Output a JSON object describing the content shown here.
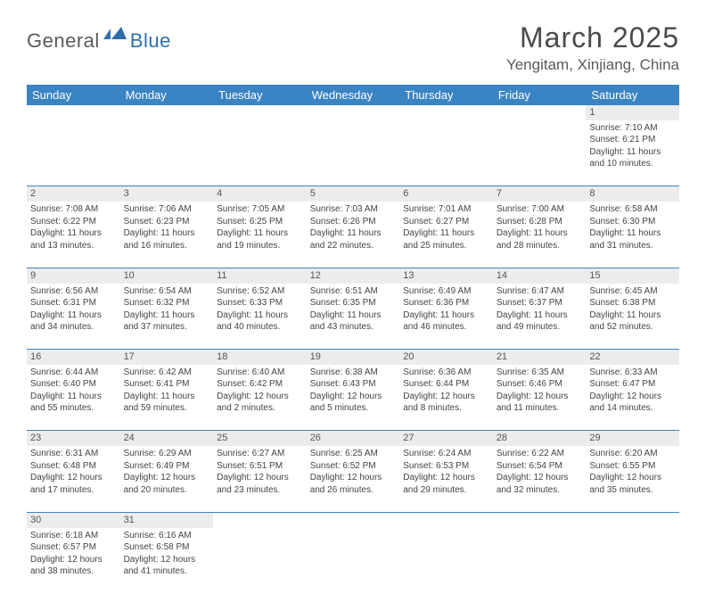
{
  "logo": {
    "part1": "General",
    "part2": "Blue"
  },
  "title": "March 2025",
  "location": "Yengitam, Xinjiang, China",
  "colors": {
    "header_bg": "#3b84c4",
    "header_text": "#ffffff",
    "daynum_bg": "#ececec",
    "row_border": "#3b84c4",
    "body_text": "#444444",
    "logo_gray": "#5a5a5a",
    "logo_blue": "#2f6fa8"
  },
  "typography": {
    "title_fontsize": 32,
    "location_fontsize": 17,
    "th_fontsize": 13,
    "cell_fontsize": 10
  },
  "day_names": [
    "Sunday",
    "Monday",
    "Tuesday",
    "Wednesday",
    "Thursday",
    "Friday",
    "Saturday"
  ],
  "weeks": [
    [
      null,
      null,
      null,
      null,
      null,
      null,
      {
        "n": "1",
        "sr": "Sunrise: 7:10 AM",
        "ss": "Sunset: 6:21 PM",
        "dl": "Daylight: 11 hours and 10 minutes."
      }
    ],
    [
      {
        "n": "2",
        "sr": "Sunrise: 7:08 AM",
        "ss": "Sunset: 6:22 PM",
        "dl": "Daylight: 11 hours and 13 minutes."
      },
      {
        "n": "3",
        "sr": "Sunrise: 7:06 AM",
        "ss": "Sunset: 6:23 PM",
        "dl": "Daylight: 11 hours and 16 minutes."
      },
      {
        "n": "4",
        "sr": "Sunrise: 7:05 AM",
        "ss": "Sunset: 6:25 PM",
        "dl": "Daylight: 11 hours and 19 minutes."
      },
      {
        "n": "5",
        "sr": "Sunrise: 7:03 AM",
        "ss": "Sunset: 6:26 PM",
        "dl": "Daylight: 11 hours and 22 minutes."
      },
      {
        "n": "6",
        "sr": "Sunrise: 7:01 AM",
        "ss": "Sunset: 6:27 PM",
        "dl": "Daylight: 11 hours and 25 minutes."
      },
      {
        "n": "7",
        "sr": "Sunrise: 7:00 AM",
        "ss": "Sunset: 6:28 PM",
        "dl": "Daylight: 11 hours and 28 minutes."
      },
      {
        "n": "8",
        "sr": "Sunrise: 6:58 AM",
        "ss": "Sunset: 6:30 PM",
        "dl": "Daylight: 11 hours and 31 minutes."
      }
    ],
    [
      {
        "n": "9",
        "sr": "Sunrise: 6:56 AM",
        "ss": "Sunset: 6:31 PM",
        "dl": "Daylight: 11 hours and 34 minutes."
      },
      {
        "n": "10",
        "sr": "Sunrise: 6:54 AM",
        "ss": "Sunset: 6:32 PM",
        "dl": "Daylight: 11 hours and 37 minutes."
      },
      {
        "n": "11",
        "sr": "Sunrise: 6:52 AM",
        "ss": "Sunset: 6:33 PM",
        "dl": "Daylight: 11 hours and 40 minutes."
      },
      {
        "n": "12",
        "sr": "Sunrise: 6:51 AM",
        "ss": "Sunset: 6:35 PM",
        "dl": "Daylight: 11 hours and 43 minutes."
      },
      {
        "n": "13",
        "sr": "Sunrise: 6:49 AM",
        "ss": "Sunset: 6:36 PM",
        "dl": "Daylight: 11 hours and 46 minutes."
      },
      {
        "n": "14",
        "sr": "Sunrise: 6:47 AM",
        "ss": "Sunset: 6:37 PM",
        "dl": "Daylight: 11 hours and 49 minutes."
      },
      {
        "n": "15",
        "sr": "Sunrise: 6:45 AM",
        "ss": "Sunset: 6:38 PM",
        "dl": "Daylight: 11 hours and 52 minutes."
      }
    ],
    [
      {
        "n": "16",
        "sr": "Sunrise: 6:44 AM",
        "ss": "Sunset: 6:40 PM",
        "dl": "Daylight: 11 hours and 55 minutes."
      },
      {
        "n": "17",
        "sr": "Sunrise: 6:42 AM",
        "ss": "Sunset: 6:41 PM",
        "dl": "Daylight: 11 hours and 59 minutes."
      },
      {
        "n": "18",
        "sr": "Sunrise: 6:40 AM",
        "ss": "Sunset: 6:42 PM",
        "dl": "Daylight: 12 hours and 2 minutes."
      },
      {
        "n": "19",
        "sr": "Sunrise: 6:38 AM",
        "ss": "Sunset: 6:43 PM",
        "dl": "Daylight: 12 hours and 5 minutes."
      },
      {
        "n": "20",
        "sr": "Sunrise: 6:36 AM",
        "ss": "Sunset: 6:44 PM",
        "dl": "Daylight: 12 hours and 8 minutes."
      },
      {
        "n": "21",
        "sr": "Sunrise: 6:35 AM",
        "ss": "Sunset: 6:46 PM",
        "dl": "Daylight: 12 hours and 11 minutes."
      },
      {
        "n": "22",
        "sr": "Sunrise: 6:33 AM",
        "ss": "Sunset: 6:47 PM",
        "dl": "Daylight: 12 hours and 14 minutes."
      }
    ],
    [
      {
        "n": "23",
        "sr": "Sunrise: 6:31 AM",
        "ss": "Sunset: 6:48 PM",
        "dl": "Daylight: 12 hours and 17 minutes."
      },
      {
        "n": "24",
        "sr": "Sunrise: 6:29 AM",
        "ss": "Sunset: 6:49 PM",
        "dl": "Daylight: 12 hours and 20 minutes."
      },
      {
        "n": "25",
        "sr": "Sunrise: 6:27 AM",
        "ss": "Sunset: 6:51 PM",
        "dl": "Daylight: 12 hours and 23 minutes."
      },
      {
        "n": "26",
        "sr": "Sunrise: 6:25 AM",
        "ss": "Sunset: 6:52 PM",
        "dl": "Daylight: 12 hours and 26 minutes."
      },
      {
        "n": "27",
        "sr": "Sunrise: 6:24 AM",
        "ss": "Sunset: 6:53 PM",
        "dl": "Daylight: 12 hours and 29 minutes."
      },
      {
        "n": "28",
        "sr": "Sunrise: 6:22 AM",
        "ss": "Sunset: 6:54 PM",
        "dl": "Daylight: 12 hours and 32 minutes."
      },
      {
        "n": "29",
        "sr": "Sunrise: 6:20 AM",
        "ss": "Sunset: 6:55 PM",
        "dl": "Daylight: 12 hours and 35 minutes."
      }
    ],
    [
      {
        "n": "30",
        "sr": "Sunrise: 6:18 AM",
        "ss": "Sunset: 6:57 PM",
        "dl": "Daylight: 12 hours and 38 minutes."
      },
      {
        "n": "31",
        "sr": "Sunrise: 6:16 AM",
        "ss": "Sunset: 6:58 PM",
        "dl": "Daylight: 12 hours and 41 minutes."
      },
      null,
      null,
      null,
      null,
      null
    ]
  ]
}
